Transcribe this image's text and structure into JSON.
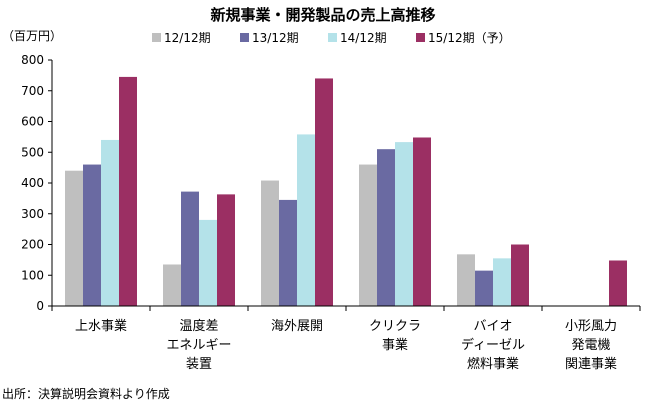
{
  "chart_data": {
    "type": "bar",
    "title": "新規事業・開発製品の売上高推移",
    "ylabel": "（百万円）",
    "xlabel": "",
    "ylim": [
      0,
      800
    ],
    "yticks": [
      0,
      100,
      200,
      300,
      400,
      500,
      600,
      700,
      800
    ],
    "grid": false,
    "legend_position": "top",
    "categories": [
      [
        "上水事業"
      ],
      [
        "温度差",
        "エネルギー",
        "装置"
      ],
      [
        "海外展開"
      ],
      [
        "クリクラ",
        "事業"
      ],
      [
        "バイオ",
        "ディーゼル",
        "燃料事業"
      ],
      [
        "小形風力",
        "発電機",
        "関連事業"
      ]
    ],
    "series": [
      {
        "name": "12/12期",
        "color": "#bfbfbf",
        "values": [
          440,
          135,
          408,
          460,
          168,
          0
        ]
      },
      {
        "name": "13/12期",
        "color": "#6a6aa2",
        "values": [
          460,
          372,
          345,
          510,
          115,
          0
        ]
      },
      {
        "name": "14/12期",
        "color": "#b4e2e9",
        "values": [
          540,
          280,
          558,
          533,
          155,
          0
        ]
      },
      {
        "name": "15/12期（予）",
        "color": "#9b2f63",
        "values": [
          745,
          363,
          740,
          548,
          200,
          148
        ]
      }
    ],
    "source_note": "出所：決算説明会資料より作成"
  }
}
